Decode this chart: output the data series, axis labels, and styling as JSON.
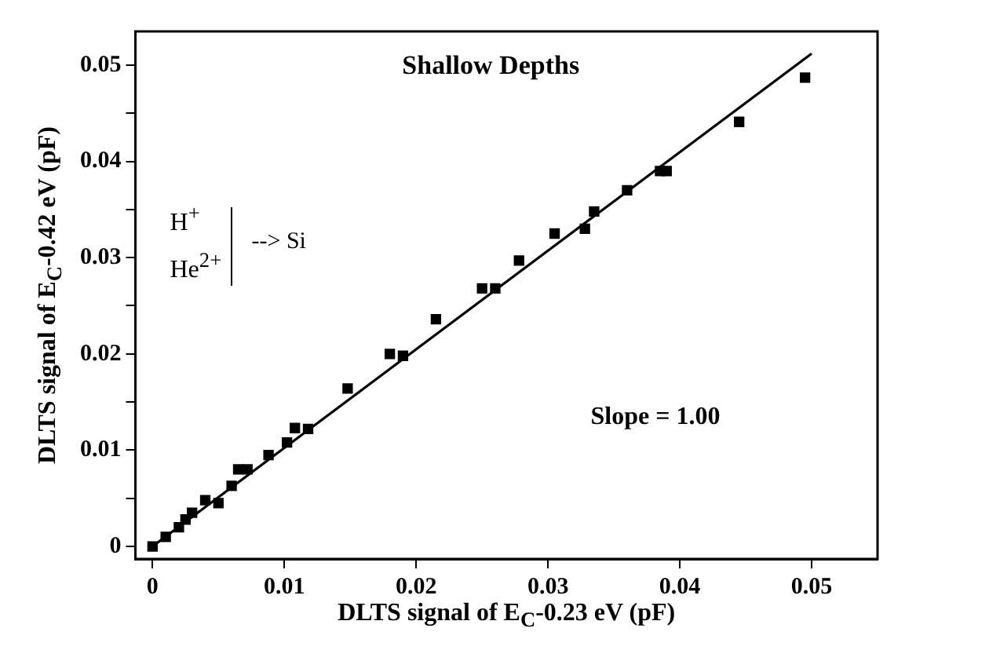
{
  "chart_data": {
    "type": "scatter",
    "title": "Shallow Depths",
    "xlabel": "DLTS signal of E$_{C}$-0.23 eV (pF)",
    "ylabel": "DLTS signal of E$_{C}$-0.42 eV (pF)",
    "annotations": [
      "H$^{+}$",
      "He$^{2+}$",
      "--> Si",
      "Slope = 1.00"
    ],
    "series": [
      {
        "type": "scatter",
        "color": "#000000",
        "marker": "square",
        "x": [
          0,
          0.001,
          0.002,
          0.0025,
          0.003,
          0.004,
          0.005,
          0.006,
          0.0065,
          0.0072,
          0.0088,
          0.0102,
          0.0108,
          0.0118,
          0.0148,
          0.018,
          0.019,
          0.0215,
          0.025,
          0.026,
          0.0278,
          0.0305,
          0.0328,
          0.0335,
          0.036,
          0.0385,
          0.039,
          0.0445,
          0.0495
        ],
        "values": [
          0,
          0.001,
          0.002,
          0.0028,
          0.0035,
          0.0048,
          0.0045,
          0.0063,
          0.008,
          0.008,
          0.0095,
          0.0108,
          0.0123,
          0.0122,
          0.0164,
          0.02,
          0.0198,
          0.0236,
          0.0268,
          0.0268,
          0.0297,
          0.0325,
          0.033,
          0.0348,
          0.037,
          0.039,
          0.039,
          0.0441,
          0.0487
        ]
      },
      {
        "type": "line",
        "color": "#000000",
        "marker": "none",
        "line_style": "solid",
        "x": [
          0,
          0.05
        ],
        "values": [
          0,
          0.0512
        ]
      }
    ],
    "xlim": [
      -0.0013,
      0.055
    ],
    "ylim": [
      -0.0013,
      0.0535
    ],
    "xticks": [
      0,
      0.01,
      0.02,
      0.03,
      0.04,
      0.05
    ],
    "yticks": [
      0,
      {
        "value": 0.005,
        "label": null
      },
      0.01,
      {
        "value": 0.015,
        "label": null
      },
      0.02,
      {
        "value": 0.025,
        "label": null
      },
      0.03,
      {
        "value": 0.035,
        "label": null
      },
      0.04,
      {
        "value": 0.045,
        "label": null
      },
      0.05
    ],
    "grid": false,
    "legend": false
  }
}
